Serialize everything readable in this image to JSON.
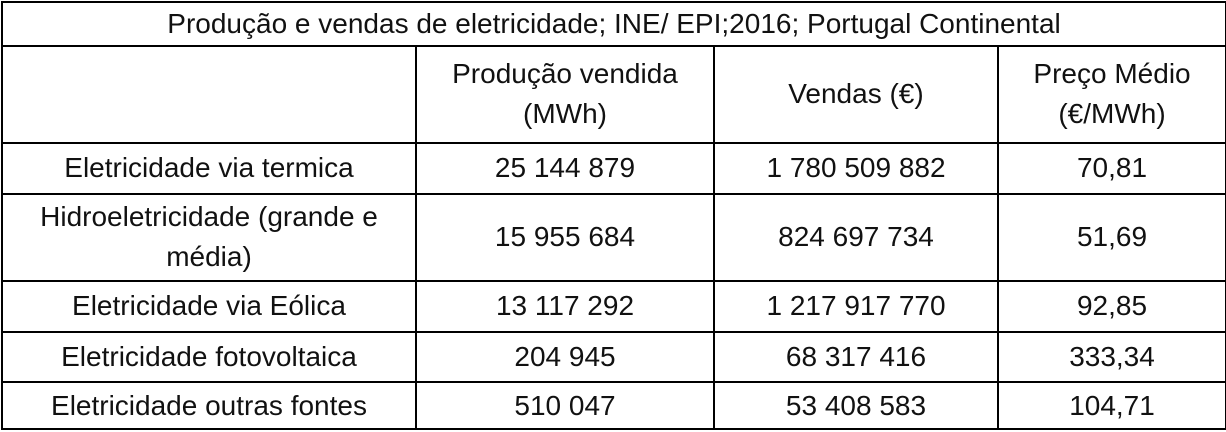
{
  "table": {
    "title": "Produção e vendas de eletricidade; INE/ EPI;2016; Portugal Continental",
    "header": [
      "",
      "Produção vendida (MWh)",
      "Vendas (€)",
      "Preço Médio (€/MWh)"
    ],
    "rows": [
      [
        "Eletricidade via termica",
        "25 144 879",
        "1 780 509 882",
        "70,81"
      ],
      [
        "Hidroeletricidade (grande e média)",
        "15 955 684",
        "824 697 734",
        "51,69"
      ],
      [
        "Eletricidade via Eólica",
        "13 117 292",
        "1 217 917 770",
        "92,85"
      ],
      [
        "Eletricidade fotovoltaica",
        "204 945",
        "68 317 416",
        "333,34"
      ],
      [
        "Eletricidade outras fontes",
        "510 047",
        "53 408 583",
        "104,71"
      ]
    ]
  }
}
